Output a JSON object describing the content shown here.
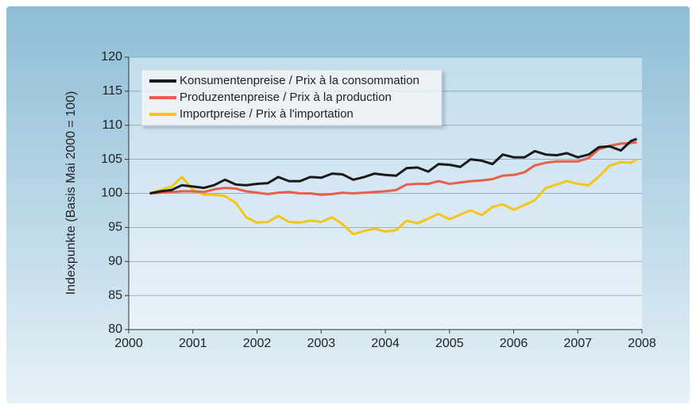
{
  "chart_data": {
    "type": "line",
    "y_label": "Indexpunkte (Basis Mai 2000 = 100)",
    "x": [
      2000.33,
      2000.5,
      2000.67,
      2000.83,
      2001.0,
      2001.17,
      2001.33,
      2001.5,
      2001.67,
      2001.83,
      2002.0,
      2002.17,
      2002.33,
      2002.5,
      2002.67,
      2002.83,
      2003.0,
      2003.17,
      2003.33,
      2003.5,
      2003.67,
      2003.83,
      2004.0,
      2004.17,
      2004.33,
      2004.5,
      2004.67,
      2004.83,
      2005.0,
      2005.17,
      2005.33,
      2005.5,
      2005.67,
      2005.83,
      2006.0,
      2006.17,
      2006.33,
      2006.5,
      2006.67,
      2006.83,
      2007.0,
      2007.17,
      2007.33,
      2007.5,
      2007.67,
      2007.83,
      2007.92
    ],
    "series": [
      {
        "name": "Konsumentenpreise / Prix à la consommation",
        "color": "#1a1a1a",
        "values": [
          100,
          100.3,
          100.5,
          101.2,
          101,
          100.8,
          101.2,
          102,
          101.3,
          101.2,
          101.4,
          101.5,
          102.4,
          101.8,
          101.8,
          102.4,
          102.3,
          102.9,
          102.8,
          102,
          102.4,
          102.9,
          102.7,
          102.6,
          103.7,
          103.8,
          103.2,
          104.3,
          104.2,
          103.9,
          105,
          104.8,
          104.3,
          105.7,
          105.3,
          105.3,
          106.2,
          105.7,
          105.6,
          105.9,
          105.3,
          105.7,
          106.8,
          106.9,
          106.3,
          107.7,
          108
        ]
      },
      {
        "name": "Produzentenpreise / Prix à la production",
        "color": "#e8604a",
        "values": [
          100,
          100.1,
          100.2,
          100.3,
          100.3,
          100.2,
          100.6,
          100.8,
          100.7,
          100.3,
          100.1,
          99.9,
          100.1,
          100.2,
          100,
          100,
          99.8,
          99.9,
          100.1,
          100,
          100.1,
          100.2,
          100.3,
          100.5,
          101.3,
          101.4,
          101.4,
          101.8,
          101.4,
          101.6,
          101.8,
          101.9,
          102.1,
          102.6,
          102.7,
          103.1,
          104.1,
          104.5,
          104.7,
          104.7,
          104.7,
          105.2,
          106.5,
          107,
          107.3,
          107.4,
          107.5
        ]
      },
      {
        "name": "Importpreise / Prix à l'importation",
        "color": "#f5c518",
        "values": [
          100,
          100.5,
          101,
          102.4,
          100.5,
          99.8,
          99.8,
          99.6,
          98.6,
          96.5,
          95.7,
          95.8,
          96.7,
          95.8,
          95.7,
          96,
          95.8,
          96.5,
          95.5,
          94,
          94.5,
          94.8,
          94.4,
          94.6,
          96,
          95.6,
          96.3,
          97,
          96.2,
          96.9,
          97.5,
          96.8,
          98,
          98.4,
          97.6,
          98.3,
          99,
          100.8,
          101.3,
          101.8,
          101.4,
          101.2,
          102.5,
          104.1,
          104.6,
          104.5,
          105
        ]
      }
    ],
    "xlim": [
      2000,
      2008
    ],
    "xticks": [
      2000,
      2001,
      2002,
      2003,
      2004,
      2005,
      2006,
      2007,
      2008
    ],
    "ylim": [
      80,
      120
    ],
    "yticks": [
      80,
      85,
      90,
      95,
      100,
      105,
      110,
      115,
      120
    ],
    "grid": true,
    "legend": "upper-left"
  }
}
